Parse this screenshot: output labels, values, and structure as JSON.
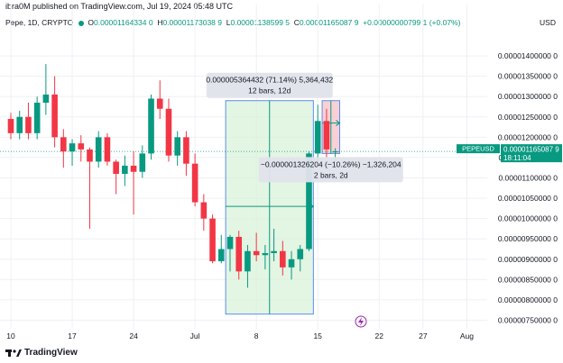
{
  "header": {
    "byline": "ibra0M published on TradingView.com, Jul 19, 2024 05:48 UTC"
  },
  "ohlc": {
    "symbol": "Pepe, 1D, CRYPTO",
    "o_label": "O",
    "o": "0.00001164334 0",
    "h_label": "H",
    "h": "0.00001173038 9",
    "l_label": "L",
    "l": "0.00001138599 5",
    "c_label": "C",
    "c": "0.00001165087 9",
    "change": "+0.00000000799 1 (+0.07%)"
  },
  "currency": "USD",
  "footer": {
    "brand": "TradingView"
  },
  "chart_data": {
    "type": "candlestick",
    "ylim": [
      7.4e-06,
      1.46e-05
    ],
    "ytick_labels": [
      "0.00001400000 0",
      "0.00001350000 0",
      "0.00001300000 0",
      "0.00001250000 0",
      "0.00001200000 0",
      "0.00001150000 0",
      "0.00001100000 0",
      "0.00001050000 0",
      "0.00001000000 0",
      "0.00000950000 0",
      "0.00000900000 0",
      "0.00000850000 0",
      "0.00000800000 0",
      "0.00000750000 0"
    ],
    "ytick_values": [
      1.4e-05,
      1.35e-05,
      1.3e-05,
      1.25e-05,
      1.2e-05,
      1.15e-05,
      1.1e-05,
      1.05e-05,
      1e-05,
      9.5e-06,
      9e-06,
      8.5e-06,
      8e-06,
      7.5e-06
    ],
    "xtick_labels": [
      {
        "label": "10",
        "index": 0
      },
      {
        "label": "17",
        "index": 7
      },
      {
        "label": "24",
        "index": 14
      },
      {
        "label": "Jul",
        "index": 21
      },
      {
        "label": "8",
        "index": 28
      },
      {
        "label": "15",
        "index": 35
      },
      {
        "label": "22",
        "index": 42
      },
      {
        "label": "27",
        "index": 47
      },
      {
        "label": "Aug",
        "index": 52
      }
    ],
    "candles": [
      {
        "o": 1.245e-05,
        "h": 1.26e-05,
        "l": 1.195e-05,
        "c": 1.21e-05
      },
      {
        "o": 1.21e-05,
        "h": 1.265e-05,
        "l": 1.195e-05,
        "c": 1.25e-05
      },
      {
        "o": 1.25e-05,
        "h": 1.285e-05,
        "l": 1.195e-05,
        "c": 1.21e-05
      },
      {
        "o": 1.21e-05,
        "h": 1.3e-05,
        "l": 1.195e-05,
        "c": 1.285e-05
      },
      {
        "o": 1.285e-05,
        "h": 1.38e-05,
        "l": 1.255e-05,
        "c": 1.305e-05
      },
      {
        "o": 1.305e-05,
        "h": 1.35e-05,
        "l": 1.175e-05,
        "c": 1.2e-05
      },
      {
        "o": 1.2e-05,
        "h": 1.22e-05,
        "l": 1.125e-05,
        "c": 1.165e-05
      },
      {
        "o": 1.165e-05,
        "h": 1.195e-05,
        "l": 1.13e-05,
        "c": 1.185e-05
      },
      {
        "o": 1.185e-05,
        "h": 1.205e-05,
        "l": 1.14e-05,
        "c": 1.17e-05
      },
      {
        "o": 1.17e-05,
        "h": 1.175e-05,
        "l": 9.75e-06,
        "c": 1.14e-05
      },
      {
        "o": 1.14e-05,
        "h": 1.215e-05,
        "l": 1.125e-05,
        "c": 1.2e-05
      },
      {
        "o": 1.2e-05,
        "h": 1.21e-05,
        "l": 1.13e-05,
        "c": 1.14e-05
      },
      {
        "o": 1.14e-05,
        "h": 1.145e-05,
        "l": 1.06e-05,
        "c": 1.11e-05
      },
      {
        "o": 1.11e-05,
        "h": 1.155e-05,
        "l": 1.08e-05,
        "c": 1.13e-05
      },
      {
        "o": 1.13e-05,
        "h": 1.165e-05,
        "l": 1.01e-05,
        "c": 1.115e-05
      },
      {
        "o": 1.115e-05,
        "h": 1.18e-05,
        "l": 1.1e-05,
        "c": 1.16e-05
      },
      {
        "o": 1.16e-05,
        "h": 1.305e-05,
        "l": 1.145e-05,
        "c": 1.295e-05
      },
      {
        "o": 1.295e-05,
        "h": 1.34e-05,
        "l": 1.245e-05,
        "c": 1.27e-05
      },
      {
        "o": 1.27e-05,
        "h": 1.295e-05,
        "l": 1.14e-05,
        "c": 1.155e-05
      },
      {
        "o": 1.155e-05,
        "h": 1.215e-05,
        "l": 1.13e-05,
        "c": 1.2e-05
      },
      {
        "o": 1.2e-05,
        "h": 1.215e-05,
        "l": 1.105e-05,
        "c": 1.135e-05
      },
      {
        "o": 1.135e-05,
        "h": 1.16e-05,
        "l": 1.03e-05,
        "c": 1.04e-05
      },
      {
        "o": 1.04e-05,
        "h": 1.06e-05,
        "l": 9.7e-06,
        "c": 1e-05
      },
      {
        "o": 1e-05,
        "h": 1.01e-05,
        "l": 8.9e-06,
        "c": 8.95e-06
      },
      {
        "o": 8.95e-06,
        "h": 9.6e-06,
        "l": 8.9e-06,
        "c": 9.25e-06
      },
      {
        "o": 9.25e-06,
        "h": 9.6e-06,
        "l": 8.7e-06,
        "c": 9.55e-06
      },
      {
        "o": 9.55e-06,
        "h": 9.7e-06,
        "l": 8.5e-06,
        "c": 8.7e-06
      },
      {
        "o": 8.7e-06,
        "h": 9.35e-06,
        "l": 8.3e-06,
        "c": 9.2e-06
      },
      {
        "o": 9.2e-06,
        "h": 9.65e-06,
        "l": 8.95e-06,
        "c": 9.1e-06
      },
      {
        "o": 9.1e-06,
        "h": 9.35e-06,
        "l": 8.75e-06,
        "c": 9.15e-06
      },
      {
        "o": 9.15e-06,
        "h": 9.75e-06,
        "l": 8.95e-06,
        "c": 9.2e-06
      },
      {
        "o": 9.2e-06,
        "h": 9.45e-06,
        "l": 8.6e-06,
        "c": 8.8e-06
      },
      {
        "o": 8.8e-06,
        "h": 9.2e-06,
        "l": 8.5e-06,
        "c": 9e-06
      },
      {
        "o": 9e-06,
        "h": 9.35e-06,
        "l": 8.7e-06,
        "c": 9.25e-06
      },
      {
        "o": 9.25e-06,
        "h": 1.165e-05,
        "l": 9.2e-06,
        "c": 1.16e-05
      },
      {
        "o": 1.16e-05,
        "h": 1.28e-05,
        "l": 1.14e-05,
        "c": 1.24e-05
      },
      {
        "o": 1.24e-05,
        "h": 1.27e-05,
        "l": 1.15e-05,
        "c": 1.17e-05
      },
      {
        "o": 1.164334e-05,
        "h": 1.173039e-05,
        "l": 1.1386e-05,
        "c": 1.165088e-05
      }
    ],
    "up_color": "#089981",
    "down_color": "#f23645",
    "price_line": {
      "value": 1.165088e-05,
      "label": "PEPEUSD",
      "price": "0.00001165087 9",
      "countdown": "18:11:04"
    },
    "range_measure_up": {
      "start_index": 25,
      "end_index": 34,
      "top": 1.29e-05,
      "bottom": 7.65e-06,
      "mid": 1.03e-05,
      "line1": "0.000005364432 (71.14%) 5,364,432",
      "line2": "12 bars, 12d",
      "fill": "#d9f2d9",
      "border": "#5b8def"
    },
    "range_measure_down": {
      "start_index": 36,
      "end_index": 37,
      "top": 1.29e-05,
      "bottom": 1.16e-05,
      "mid": 1.235e-05,
      "line1": "−0.000001326204 (−10.26%) −1,326,204",
      "line2": "2 bars, 2d",
      "fill": "#f7c2c6",
      "border": "#5b8def"
    }
  }
}
